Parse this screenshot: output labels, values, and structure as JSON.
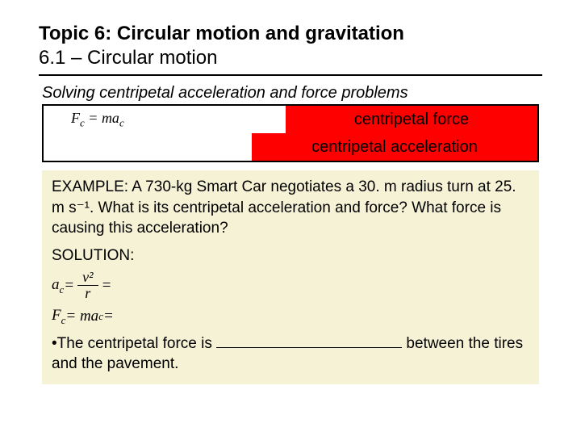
{
  "header": {
    "topic": "Topic 6: Circular motion and gravitation",
    "sub": "6.1 – Circular motion"
  },
  "section": {
    "heading": "Solving centripetal acceleration and force problems"
  },
  "formulas": {
    "row1": {
      "left_html": "F<sub>c</sub> = ma<sub>c</sub>",
      "right": "centripetal force"
    },
    "row2": {
      "left_html": "",
      "right": "centripetal acceleration"
    }
  },
  "example": {
    "label": "EXAMPLE:",
    "text": " A 730-kg Smart Car negotiates a 30. m radius turn at 25. m s⁻¹. What is its centripetal acceleration and force? What force is causing this acceleration?",
    "solution_label": "SOLUTION:",
    "eq1_prefix": "a",
    "eq1_sub": "c",
    "eq1_eq": " = ",
    "eq1_num": "v²",
    "eq1_den": "r",
    "eq1_tail": " = ",
    "eq2_prefix": "F",
    "eq2_sub": "c",
    "eq2_body": " = ma",
    "eq2_sub2": "c",
    "eq2_tail": " = ",
    "bullet": "•The centripetal force is ",
    "bullet_tail": " between the tires and the pavement."
  },
  "colors": {
    "red": "#ff0000",
    "cream": "#f6f2d6"
  }
}
